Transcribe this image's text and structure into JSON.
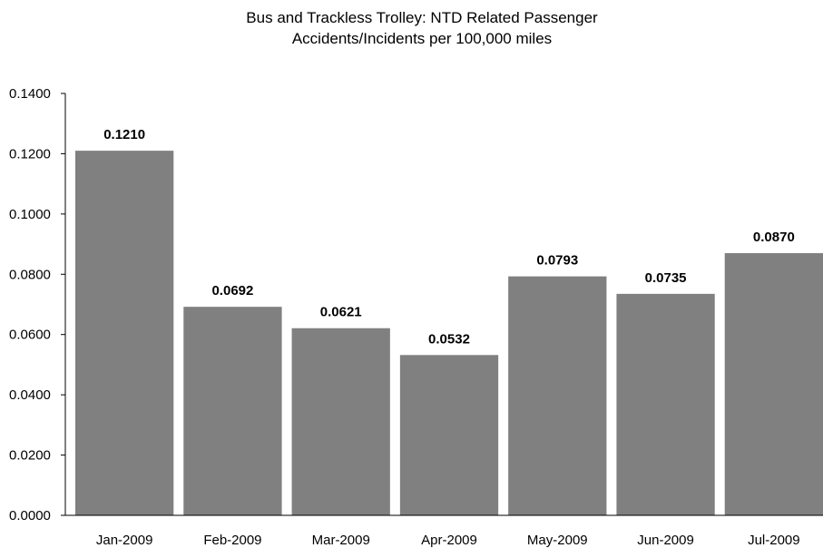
{
  "chart_data": {
    "type": "bar",
    "title": "Bus and Trackless Trolley: NTD Related Passenger",
    "subtitle": "Accidents/Incidents per 100,000 miles",
    "xlabel": "",
    "ylabel": "",
    "categories": [
      "Jan-2009",
      "Feb-2009",
      "Mar-2009",
      "Apr-2009",
      "May-2009",
      "Jun-2009",
      "Jul-2009"
    ],
    "values": [
      0.121,
      0.0692,
      0.0621,
      0.0532,
      0.0793,
      0.0735,
      0.087
    ],
    "data_labels": [
      "0.1210",
      "0.0692",
      "0.0621",
      "0.0532",
      "0.0793",
      "0.0735",
      "0.0870"
    ],
    "y_ticks": [
      "0.0000",
      "0.0200",
      "0.0400",
      "0.0600",
      "0.0800",
      "0.1000",
      "0.1200",
      "0.1400"
    ],
    "ylim": [
      0,
      0.14
    ],
    "grid": false,
    "bar_color": "#808080"
  }
}
